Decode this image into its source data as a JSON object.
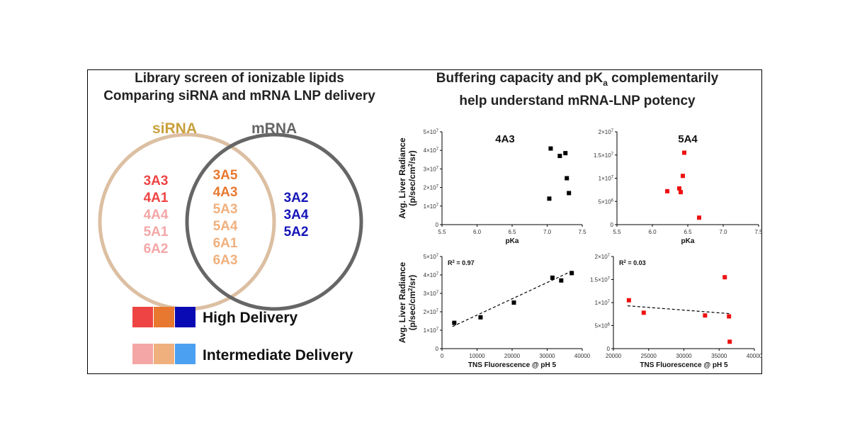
{
  "left": {
    "title_line1": "Library screen of ionizable lipids",
    "title_line2": "Comparing siRNA and mRNA LNP delivery",
    "venn": {
      "sirna_label": "siRNA",
      "mrna_label": "mRNA",
      "sirna_only": [
        {
          "name": "3A3",
          "color": "#ee4444"
        },
        {
          "name": "4A1",
          "color": "#ee4444"
        },
        {
          "name": "4A4",
          "color": "#f4a6a6"
        },
        {
          "name": "5A1",
          "color": "#f4a6a6"
        },
        {
          "name": "6A2",
          "color": "#f4a6a6"
        }
      ],
      "overlap": [
        {
          "name": "3A5",
          "color": "#e8782f"
        },
        {
          "name": "4A3",
          "color": "#e8782f"
        },
        {
          "name": "5A3",
          "color": "#f0b07e"
        },
        {
          "name": "5A4",
          "color": "#f0b07e"
        },
        {
          "name": "6A1",
          "color": "#f0b07e"
        },
        {
          "name": "6A3",
          "color": "#f0b07e"
        }
      ],
      "mrna_only": [
        {
          "name": "3A2",
          "color": "#1616b8"
        },
        {
          "name": "3A4",
          "color": "#1616b8"
        },
        {
          "name": "5A2",
          "color": "#1616b8"
        }
      ]
    },
    "legend": {
      "high_label": "High Delivery",
      "intermediate_label": "Intermediate Delivery",
      "high_colors": [
        "#ee4444",
        "#e8782f",
        "#0a0ab4"
      ],
      "intermediate_colors": [
        "#f4a6a6",
        "#f0b07e",
        "#4ca0f2"
      ]
    }
  },
  "right": {
    "title_line1_pre": "Buffering capacity and pK",
    "title_line1_sub": "a",
    "title_line1_post": " complementarily",
    "title_line2": "help understand mRNA-LNP potency"
  },
  "chart_data": [
    {
      "type": "scatter",
      "label": "4A3",
      "xlabel": "pKa",
      "ylabel": "Avg. Liver Radiance (p/sec/cm2/sr)",
      "xlim": [
        5.5,
        7.5
      ],
      "xticks": [
        "5.5",
        "6.0",
        "6.5",
        "7.0",
        "7.5"
      ],
      "ylim": [
        0,
        50000000.0
      ],
      "yticks": [
        "0",
        "1×10^7",
        "2×10^7",
        "3×10^7",
        "4×10^7",
        "5×10^7"
      ],
      "marker_color": "#000000",
      "points": [
        {
          "x": 7.05,
          "y": 41000000
        },
        {
          "x": 7.18,
          "y": 37000000
        },
        {
          "x": 7.26,
          "y": 38500000
        },
        {
          "x": 7.28,
          "y": 25000000
        },
        {
          "x": 7.31,
          "y": 17000000
        },
        {
          "x": 7.03,
          "y": 14000000
        }
      ]
    },
    {
      "type": "scatter",
      "label": "5A4",
      "xlabel": "pKa",
      "ylabel": "",
      "xlim": [
        5.5,
        7.5
      ],
      "xticks": [
        "5.5",
        "6.0",
        "6.5",
        "7.0",
        "7.5"
      ],
      "ylim": [
        0,
        20000000.0
      ],
      "yticks": [
        "0",
        "5×10^6",
        "1×10^7",
        "1.5×10^7",
        "2×10^7"
      ],
      "marker_color": "#ee1111",
      "points": [
        {
          "x": 6.45,
          "y": 15500000
        },
        {
          "x": 6.43,
          "y": 10500000
        },
        {
          "x": 6.38,
          "y": 7800000
        },
        {
          "x": 6.4,
          "y": 7000000
        },
        {
          "x": 6.21,
          "y": 7200000
        },
        {
          "x": 6.66,
          "y": 1500000
        }
      ]
    },
    {
      "type": "scatter",
      "label": "",
      "annotation": "R^2 = 0.97",
      "xlabel": "TNS Fluorescence @ pH 5",
      "ylabel": "Avg. Liver Radiance (p/sec/cm2/sr)",
      "xlim": [
        0,
        40000
      ],
      "xticks": [
        "0",
        "10000",
        "20000",
        "30000",
        "40000"
      ],
      "ylim": [
        0,
        50000000.0
      ],
      "yticks": [
        "0",
        "1×10^7",
        "2×10^7",
        "3×10^7",
        "4×10^7",
        "5×10^7"
      ],
      "marker_color": "#000000",
      "trendline": {
        "x": [
          3000,
          37500
        ],
        "y": [
          12000000,
          42500000
        ]
      },
      "points": [
        {
          "x": 3500,
          "y": 14000000
        },
        {
          "x": 11000,
          "y": 17000000
        },
        {
          "x": 20500,
          "y": 25000000
        },
        {
          "x": 31500,
          "y": 38500000
        },
        {
          "x": 34000,
          "y": 37000000
        },
        {
          "x": 37000,
          "y": 41000000
        }
      ]
    },
    {
      "type": "scatter",
      "label": "",
      "annotation": "R^2 = 0.03",
      "xlabel": "TNS Fluorescence @ pH 5",
      "ylabel": "",
      "xlim": [
        20000,
        40000
      ],
      "xticks": [
        "20000",
        "25000",
        "30000",
        "35000",
        "40000"
      ],
      "ylim": [
        0,
        20000000.0
      ],
      "yticks": [
        "0",
        "5×10^6",
        "1×10^7",
        "1.5×10^7",
        "2×10^7"
      ],
      "marker_color": "#ee1111",
      "trendline": {
        "x": [
          22000,
          36500
        ],
        "y": [
          9300000,
          7600000
        ]
      },
      "points": [
        {
          "x": 22200,
          "y": 10500000
        },
        {
          "x": 24300,
          "y": 7800000
        },
        {
          "x": 33000,
          "y": 7200000
        },
        {
          "x": 35800,
          "y": 15500000
        },
        {
          "x": 36400,
          "y": 7000000
        },
        {
          "x": 36500,
          "y": 1500000
        }
      ]
    }
  ]
}
